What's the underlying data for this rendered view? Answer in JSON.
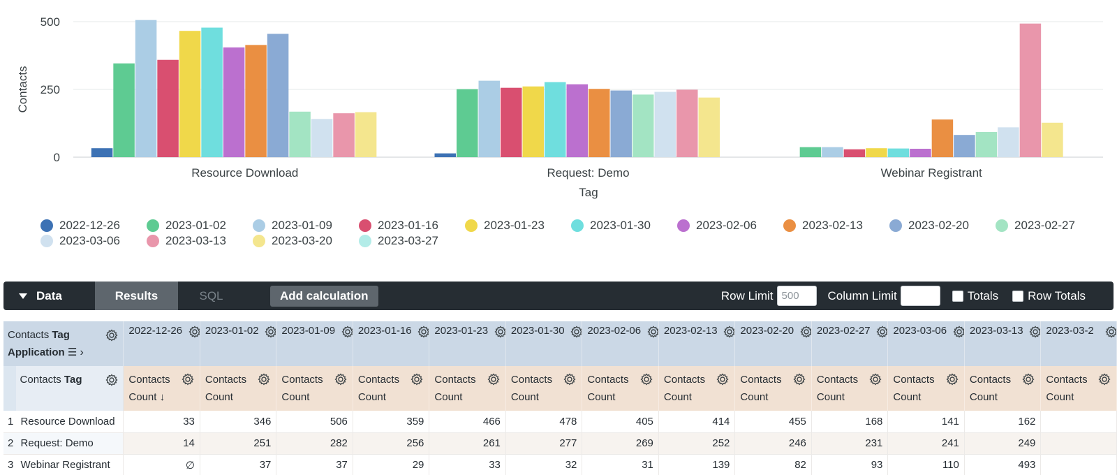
{
  "chart_data": {
    "type": "bar",
    "categories": [
      "Resource Download",
      "Request: Demo",
      "Webinar Registrant"
    ],
    "xlabel": "Tag",
    "ylabel": "Contacts",
    "ylim": [
      0,
      500
    ],
    "yticks": [
      0,
      250,
      500
    ],
    "grid": true,
    "legend_position": "bottom",
    "series": [
      {
        "name": "2022-12-26",
        "color": "#3d72b4",
        "values": [
          33,
          14,
          null
        ]
      },
      {
        "name": "2023-01-02",
        "color": "#5ecb92",
        "values": [
          346,
          251,
          37
        ]
      },
      {
        "name": "2023-01-09",
        "color": "#abcde5",
        "values": [
          506,
          282,
          37
        ]
      },
      {
        "name": "2023-01-16",
        "color": "#d94f70",
        "values": [
          359,
          256,
          29
        ]
      },
      {
        "name": "2023-01-23",
        "color": "#f0d84a",
        "values": [
          466,
          261,
          33
        ]
      },
      {
        "name": "2023-01-30",
        "color": "#6fdede",
        "values": [
          478,
          277,
          32
        ]
      },
      {
        "name": "2023-02-06",
        "color": "#bb70cf",
        "values": [
          405,
          269,
          31
        ]
      },
      {
        "name": "2023-02-13",
        "color": "#ea8f42",
        "values": [
          414,
          252,
          139
        ]
      },
      {
        "name": "2023-02-20",
        "color": "#8aaad4",
        "values": [
          455,
          246,
          82
        ]
      },
      {
        "name": "2023-02-27",
        "color": "#a3e4c3",
        "values": [
          168,
          231,
          93
        ]
      },
      {
        "name": "2023-03-06",
        "color": "#d0e1ef",
        "values": [
          141,
          241,
          110
        ]
      },
      {
        "name": "2023-03-13",
        "color": "#e996ab",
        "values": [
          162,
          249,
          493
        ]
      },
      {
        "name": "2023-03-20",
        "color": "#f4e68e",
        "values": [
          166,
          220,
          127
        ]
      },
      {
        "name": "2023-03-27",
        "color": "#b3ece8",
        "values": [
          null,
          null,
          null
        ]
      }
    ]
  },
  "toolbar": {
    "data_label": "Data",
    "results_label": "Results",
    "sql_label": "SQL",
    "add_calc_label": "Add calculation",
    "row_limit_label": "Row Limit",
    "row_limit_value": "500",
    "column_limit_label": "Column Limit",
    "column_limit_value": "",
    "totals_label": "Totals",
    "row_totals_label": "Row Totals"
  },
  "table": {
    "pivot_dim_prefix": "Contacts",
    "pivot_dim_name": "Tag",
    "pivot_dim_line2": "Application",
    "row_dim_prefix": "Contacts",
    "row_dim_name": "Tag",
    "measure_line1": "Contacts",
    "measure_line2": "Count",
    "sorted_measure_line2": "Count ↓",
    "pivot_columns": [
      "2022-12-26",
      "2023-01-02",
      "2023-01-09",
      "2023-01-16",
      "2023-01-23",
      "2023-01-30",
      "2023-02-06",
      "2023-02-13",
      "2023-02-20",
      "2023-02-27",
      "2023-03-06",
      "2023-03-13",
      "2023-03-2"
    ],
    "rows": [
      {
        "num": "1",
        "tag": "Resource Download",
        "values": [
          "33",
          "346",
          "506",
          "359",
          "466",
          "478",
          "405",
          "414",
          "455",
          "168",
          "141",
          "162",
          ""
        ]
      },
      {
        "num": "2",
        "tag": "Request: Demo",
        "values": [
          "14",
          "251",
          "282",
          "256",
          "261",
          "277",
          "269",
          "252",
          "246",
          "231",
          "241",
          "249",
          ""
        ]
      },
      {
        "num": "3",
        "tag": "Webinar Registrant",
        "values": [
          "∅",
          "37",
          "37",
          "29",
          "33",
          "32",
          "31",
          "139",
          "82",
          "93",
          "110",
          "493",
          ""
        ]
      }
    ]
  }
}
